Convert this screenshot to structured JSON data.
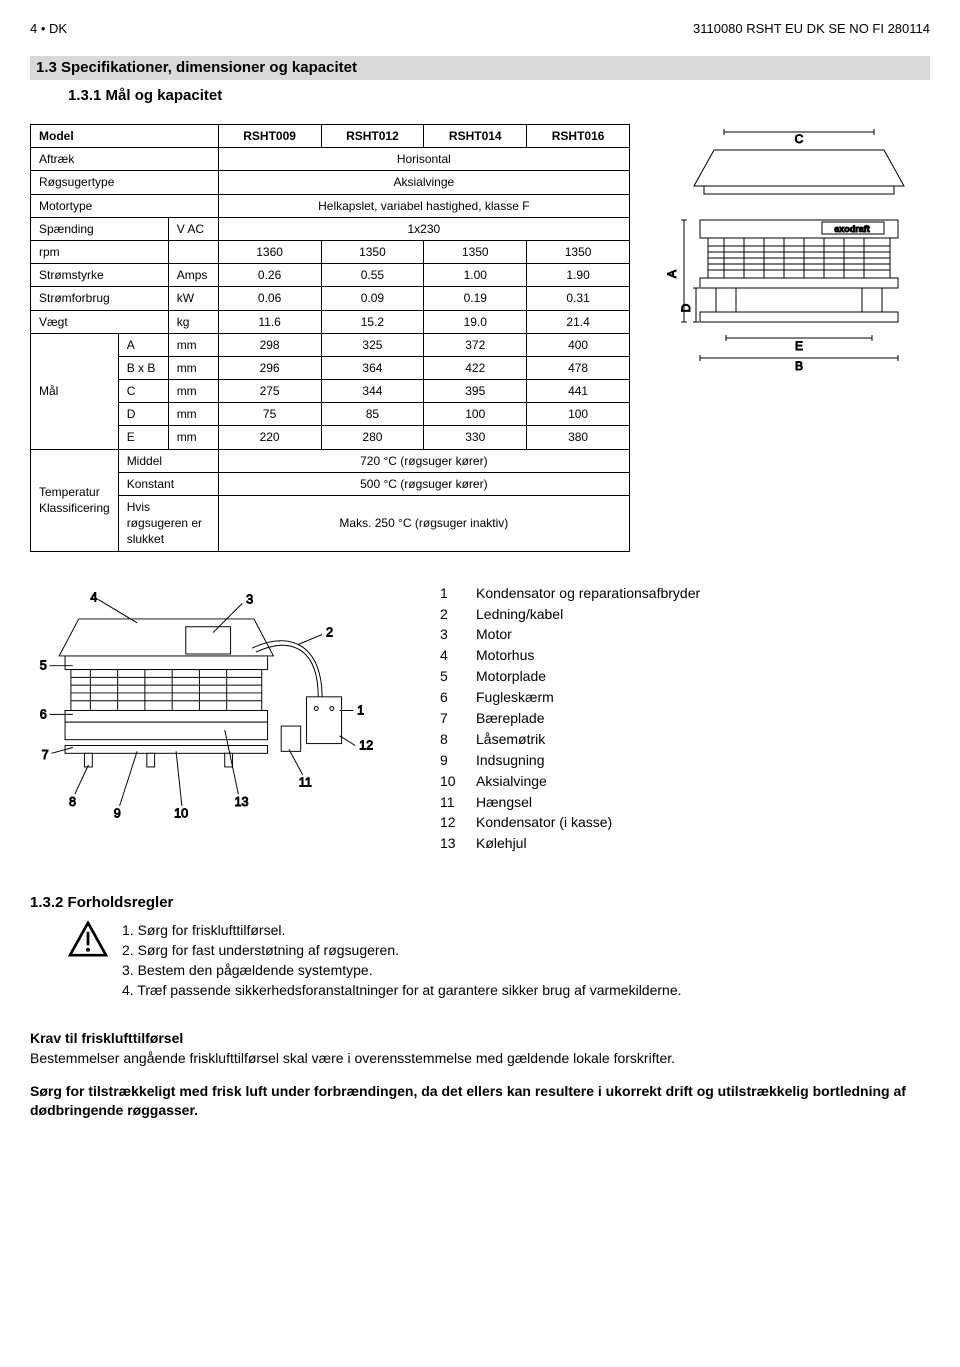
{
  "header": {
    "left": "4 • DK",
    "right": "3110080 RSHT EU DK SE NO FI 280114"
  },
  "section": {
    "num_title": "1.3    Specifikationer, dimensioner og kapacitet",
    "sub": "1.3.1  Mål og kapacitet"
  },
  "table": {
    "head": {
      "model": "Model",
      "c1": "RSHT009",
      "c2": "RSHT012",
      "c3": "RSHT014",
      "c4": "RSHT016"
    },
    "rows": {
      "aftraek": {
        "label": "Aftræk",
        "val": "Horisontal"
      },
      "rogsugertype": {
        "label": "Røgsugertype",
        "val": "Aksialvinge"
      },
      "motortype": {
        "label": "Motortype",
        "val": "Helkapslet, variabel hastighed, klasse F"
      },
      "spaending": {
        "label": "Spænding",
        "unit": "V AC",
        "val": "1x230"
      },
      "rpm": {
        "label": "rpm",
        "unit": "",
        "v1": "1360",
        "v2": "1350",
        "v3": "1350",
        "v4": "1350"
      },
      "stromstyrke": {
        "label": "Strømstyrke",
        "unit": "Amps",
        "v1": "0.26",
        "v2": "0.55",
        "v3": "1.00",
        "v4": "1.90"
      },
      "stromforbrug": {
        "label": "Strømforbrug",
        "unit": "kW",
        "v1": "0.06",
        "v2": "0.09",
        "v3": "0.19",
        "v4": "0.31"
      },
      "vaegt": {
        "label": "Vægt",
        "unit": "kg",
        "v1": "11.6",
        "v2": "15.2",
        "v3": "19.0",
        "v4": "21.4"
      },
      "mal_label": "Mål",
      "mal": {
        "A": {
          "dim": "A",
          "unit": "mm",
          "v1": "298",
          "v2": "325",
          "v3": "372",
          "v4": "400"
        },
        "BxB": {
          "dim": "B x B",
          "unit": "mm",
          "v1": "296",
          "v2": "364",
          "v3": "422",
          "v4": "478"
        },
        "C": {
          "dim": "C",
          "unit": "mm",
          "v1": "275",
          "v2": "344",
          "v3": "395",
          "v4": "441"
        },
        "D": {
          "dim": "D",
          "unit": "mm",
          "v1": "75",
          "v2": "85",
          "v3": "100",
          "v4": "100"
        },
        "E": {
          "dim": "E",
          "unit": "mm",
          "v1": "220",
          "v2": "280",
          "v3": "330",
          "v4": "380"
        }
      },
      "temp_label": "Temperatur Klassificering",
      "temp": {
        "middel": {
          "k": "Middel",
          "v": "720 °C (røgsuger kører)"
        },
        "konstant": {
          "k": "Konstant",
          "v": "500 °C (røgsuger kører)"
        },
        "slukket": {
          "k": "Hvis røgsugeren er slukket",
          "v": "Maks. 250 °C (røgsuger inaktiv)"
        }
      }
    }
  },
  "dim_svg": {
    "exodraft": "exodraft",
    "labels": {
      "A": "A",
      "B": "B",
      "C": "C",
      "D": "D",
      "E": "E"
    },
    "colors": {
      "stroke": "#000000",
      "fill_body": "#ffffff",
      "fill_fins": "#ffffff"
    }
  },
  "comp_svg": {
    "labels": {
      "n1": "1",
      "n2": "2",
      "n3": "3",
      "n4": "4",
      "n5": "5",
      "n6": "6",
      "n7": "7",
      "n8": "8",
      "n9": "9",
      "n10": "10",
      "n11": "11",
      "n12": "12",
      "n13": "13"
    },
    "colors": {
      "stroke": "#000000"
    }
  },
  "legend": {
    "items": [
      {
        "n": "1",
        "t": "Kondensator og reparationsafbryder"
      },
      {
        "n": "2",
        "t": "Ledning/kabel"
      },
      {
        "n": "3",
        "t": "Motor"
      },
      {
        "n": "4",
        "t": "Motorhus"
      },
      {
        "n": "5",
        "t": "Motorplade"
      },
      {
        "n": "6",
        "t": "Fugleskærm"
      },
      {
        "n": "7",
        "t": "Bæreplade"
      },
      {
        "n": "8",
        "t": "Låsemøtrik"
      },
      {
        "n": "9",
        "t": "Indsugning"
      },
      {
        "n": "10",
        "t": "Aksialvinge"
      },
      {
        "n": "11",
        "t": "Hængsel"
      },
      {
        "n": "12",
        "t": "Kondensator (i kasse)"
      },
      {
        "n": "13",
        "t": "Kølehjul"
      }
    ]
  },
  "forholdsregler": {
    "heading": "1.3.2   Forholdsregler",
    "items": {
      "i1": "1. Sørg for frisklufttilførsel.",
      "i2": "2. Sørg for fast understøtning af røgsugeren.",
      "i3": "3. Bestem den pågældende systemtype.",
      "i4": "4. Træf passende sikkerhedsforanstaltninger for at garantere sikker brug af varmekilderne."
    }
  },
  "krav": {
    "head": "Krav til frisklufttilførsel",
    "body": "Bestemmelser angående frisklufttilførsel skal være i overensstemmelse med gældende lokale forskrifter.",
    "bold": "Sørg for tilstrækkeligt med frisk luft under forbrændingen, da det ellers kan resultere i ukorrekt drift og utilstrækkelig bortledning af dødbringende røggasser."
  }
}
